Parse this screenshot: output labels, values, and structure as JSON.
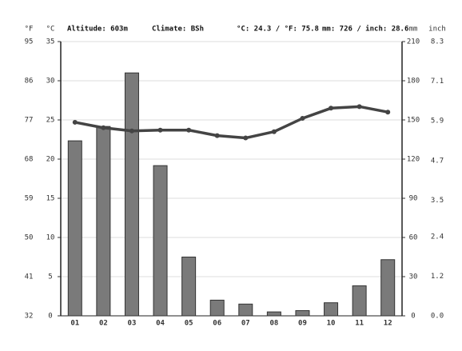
{
  "chart_data": {
    "type": "bar",
    "header": {
      "f_unit": "°F",
      "c_unit": "°C",
      "altitude": "Altitude: 603m",
      "climate": "Climate: BSh",
      "temp_avg": "°C: 24.3 / °F: 75.8",
      "precip_total": "mm: 726 / inch: 28.6",
      "mm_unit": "mm",
      "inch_unit": "inch"
    },
    "categories": [
      "01",
      "02",
      "03",
      "04",
      "05",
      "06",
      "07",
      "08",
      "09",
      "10",
      "11",
      "12"
    ],
    "series": [
      {
        "type": "bar",
        "axis": "y2",
        "color": "#7a7a7a",
        "values": [
          134,
          145,
          186,
          115,
          45,
          12,
          9,
          3,
          4,
          10,
          23,
          43
        ]
      },
      {
        "type": "line",
        "axis": "y",
        "color": "#444444",
        "values": [
          24.7,
          24.0,
          23.6,
          23.7,
          23.7,
          23.0,
          22.7,
          23.5,
          25.2,
          26.5,
          26.7,
          26.0
        ]
      }
    ],
    "ylim": [
      0,
      35
    ],
    "yticks": [
      0,
      5,
      10,
      15,
      20,
      25,
      30,
      35
    ],
    "flim": [
      32,
      95
    ],
    "fticks": [
      32,
      41,
      50,
      59,
      68,
      77,
      86,
      95
    ],
    "y2lim": [
      0,
      210
    ],
    "y2ticks": [
      0,
      30,
      60,
      90,
      120,
      150,
      180,
      210
    ],
    "inchlim": [
      0,
      8.3
    ],
    "inchticks": [
      {
        "value": 0,
        "label": "0.0"
      },
      1.2,
      2.4,
      3.5,
      4.7,
      5.9,
      7.1,
      8.3
    ],
    "grid": true
  }
}
